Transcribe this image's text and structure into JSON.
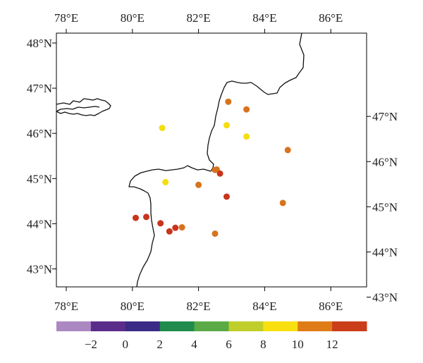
{
  "map": {
    "x_ticks_top": [
      "78°E",
      "80°E",
      "82°E",
      "84°E",
      "86°E"
    ],
    "x_ticks_bottom": [
      "78°E",
      "80°E",
      "82°E",
      "84°E",
      "86°E"
    ],
    "y_ticks_left": [
      "48°N",
      "47°N",
      "46°N",
      "45°N",
      "44°N",
      "43°N"
    ],
    "y_ticks_right": [
      "47°N",
      "46°N",
      "45°N",
      "44°N",
      "43°N"
    ],
    "boundary_color": "#111111",
    "stations": [
      {
        "lon": 80.9,
        "lat": 46.12,
        "color": "#f5de10"
      },
      {
        "lon": 81.0,
        "lat": 44.92,
        "color": "#f5de10"
      },
      {
        "lon": 80.1,
        "lat": 44.13,
        "color": "#c8341c"
      },
      {
        "lon": 80.42,
        "lat": 44.15,
        "color": "#c8341c"
      },
      {
        "lon": 80.85,
        "lat": 44.01,
        "color": "#c8341c"
      },
      {
        "lon": 81.12,
        "lat": 43.83,
        "color": "#c8341c"
      },
      {
        "lon": 81.3,
        "lat": 43.91,
        "color": "#c8341c"
      },
      {
        "lon": 81.5,
        "lat": 43.92,
        "color": "#d7731d"
      },
      {
        "lon": 82.0,
        "lat": 44.86,
        "color": "#d7731d"
      },
      {
        "lon": 82.5,
        "lat": 43.78,
        "color": "#d7731d"
      },
      {
        "lon": 82.5,
        "lat": 45.19,
        "color": "#d7731d"
      },
      {
        "lon": 82.55,
        "lat": 45.2,
        "color": "#d7731d"
      },
      {
        "lon": 82.65,
        "lat": 45.11,
        "color": "#c8341c"
      },
      {
        "lon": 82.85,
        "lat": 44.6,
        "color": "#c8341c"
      },
      {
        "lon": 82.9,
        "lat": 46.7,
        "color": "#d7731d"
      },
      {
        "lon": 82.85,
        "lat": 46.18,
        "color": "#f5de10"
      },
      {
        "lon": 83.45,
        "lat": 46.53,
        "color": "#d7731d"
      },
      {
        "lon": 83.45,
        "lat": 45.93,
        "color": "#f5de10"
      },
      {
        "lon": 84.55,
        "lat": 44.46,
        "color": "#d7731d"
      },
      {
        "lon": 84.7,
        "lat": 45.63,
        "color": "#d7731d"
      }
    ]
  },
  "legend": {
    "labels": [
      "−2",
      "0",
      "2",
      "4",
      "6",
      "8",
      "10",
      "12"
    ],
    "colors": [
      "#ab88c2",
      "#5b2d8b",
      "#3b2a86",
      "#1f8b4c",
      "#5aab46",
      "#bfce2a",
      "#f8e010",
      "#e07c17",
      "#ca3e1a"
    ]
  }
}
